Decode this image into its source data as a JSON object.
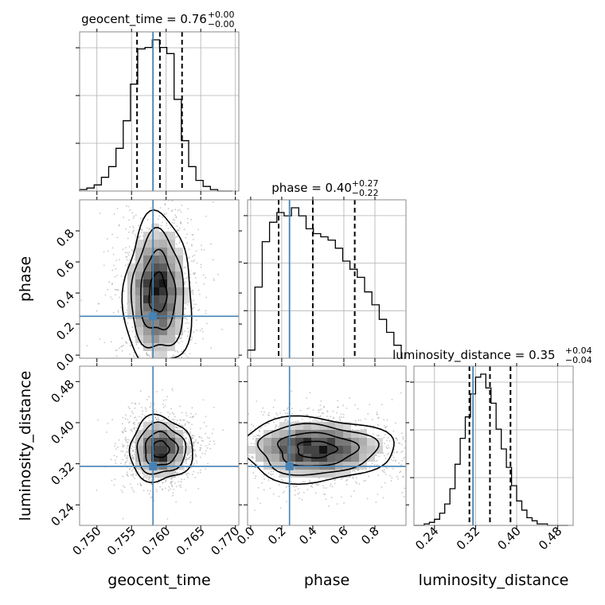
{
  "chart_data": {
    "type": "corner",
    "parameters": [
      {
        "key": "geocent_time",
        "label": "geocent_time",
        "range": [
          0.7475,
          0.7705
        ],
        "ticks": [
          0.75,
          0.755,
          0.76,
          0.765,
          0.77
        ],
        "tick_labels": [
          "0.750",
          "0.755",
          "0.760",
          "0.765",
          "0.770"
        ],
        "injection": 0.7581
      },
      {
        "key": "phase",
        "label": "phase",
        "range": [
          -0.02,
          1.0
        ],
        "ticks": [
          0.0,
          0.2,
          0.4,
          0.6,
          0.8
        ],
        "tick_labels": [
          "0.0",
          "0.2",
          "0.4",
          "0.6",
          "0.8"
        ],
        "injection": 0.25
      },
      {
        "key": "luminosity_distance",
        "label": "luminosity_distance",
        "range": [
          0.2,
          0.51
        ],
        "ticks": [
          0.24,
          0.32,
          0.4,
          0.48
        ],
        "tick_labels": [
          "0.24",
          "0.32",
          "0.40",
          "0.48"
        ],
        "injection": 0.315
      }
    ],
    "titles": [
      {
        "name": "geocent_time",
        "value": "0.76",
        "plus": "+0.00",
        "minus": "−0.00"
      },
      {
        "name": "phase",
        "value": "0.40",
        "plus": "+0.27",
        "minus": "−0.22"
      },
      {
        "name": "luminosity_distance",
        "value": "0.35",
        "plus": "+0.04",
        "minus": "−0.04"
      }
    ],
    "marginals": [
      {
        "param": "geocent_time",
        "quantiles": [
          0.7558,
          0.7591,
          0.7623
        ],
        "bin_edges": [
          0.7475,
          0.74855,
          0.7496,
          0.75065,
          0.7517,
          0.75275,
          0.7538,
          0.75485,
          0.7559,
          0.75695,
          0.758,
          0.75905,
          0.7601,
          0.76115,
          0.7622,
          0.76325,
          0.7643,
          0.76535,
          0.7664,
          0.76745,
          0.7685,
          0.76955
        ],
        "counts": [
          0.01,
          0.02,
          0.04,
          0.09,
          0.16,
          0.28,
          0.46,
          0.7,
          0.93,
          0.94,
          0.99,
          0.94,
          0.9,
          0.6,
          0.33,
          0.16,
          0.07,
          0.03,
          0.01,
          0.0,
          0.0
        ]
      },
      {
        "param": "phase",
        "quantiles": [
          0.18,
          0.4,
          0.67
        ],
        "bin_edges": [
          -0.02,
          0.0271,
          0.0742,
          0.1213,
          0.1684,
          0.2155,
          0.2626,
          0.3097,
          0.3568,
          0.4039,
          0.451,
          0.4981,
          0.5452,
          0.5923,
          0.6394,
          0.6865,
          0.7336,
          0.7807,
          0.8278,
          0.8749,
          0.922,
          0.9691
        ],
        "counts": [
          0.05,
          0.44,
          0.72,
          0.84,
          0.9,
          0.88,
          0.93,
          0.88,
          0.8,
          0.77,
          0.75,
          0.73,
          0.68,
          0.6,
          0.55,
          0.5,
          0.41,
          0.33,
          0.24,
          0.16,
          0.08
        ]
      },
      {
        "param": "luminosity_distance",
        "quantiles": [
          0.308,
          0.348,
          0.388
        ],
        "bin_edges": [
          0.2,
          0.21,
          0.22,
          0.23,
          0.24,
          0.25,
          0.26,
          0.27,
          0.28,
          0.29,
          0.3,
          0.31,
          0.32,
          0.33,
          0.34,
          0.35,
          0.36,
          0.37,
          0.38,
          0.39,
          0.4,
          0.41,
          0.42,
          0.43,
          0.44,
          0.45,
          0.46,
          0.47,
          0.48,
          0.49,
          0.5
        ],
        "counts": [
          0.0,
          0.0,
          0.01,
          0.02,
          0.04,
          0.08,
          0.14,
          0.24,
          0.4,
          0.57,
          0.71,
          0.86,
          0.97,
          0.99,
          0.9,
          0.8,
          0.63,
          0.5,
          0.38,
          0.26,
          0.16,
          0.1,
          0.05,
          0.03,
          0.01,
          0.01,
          0.0,
          0.0,
          0.0,
          0.0
        ]
      }
    ],
    "joint": [
      {
        "x": "geocent_time",
        "y": "phase",
        "center": [
          0.7588,
          0.4
        ],
        "spread": [
          0.0028,
          0.28
        ],
        "y_floor": 0.0,
        "y_ceil": 1.0
      },
      {
        "x": "geocent_time",
        "y": "luminosity_distance",
        "center": [
          0.7592,
          0.348
        ],
        "spread": [
          0.0026,
          0.036
        ]
      },
      {
        "x": "phase",
        "y": "luminosity_distance",
        "center": [
          0.42,
          0.348
        ],
        "spread": [
          0.28,
          0.036
        ],
        "x_floor": 0.0,
        "x_ceil": 1.0
      }
    ],
    "injection_color": "#4682b4",
    "grid": true
  }
}
